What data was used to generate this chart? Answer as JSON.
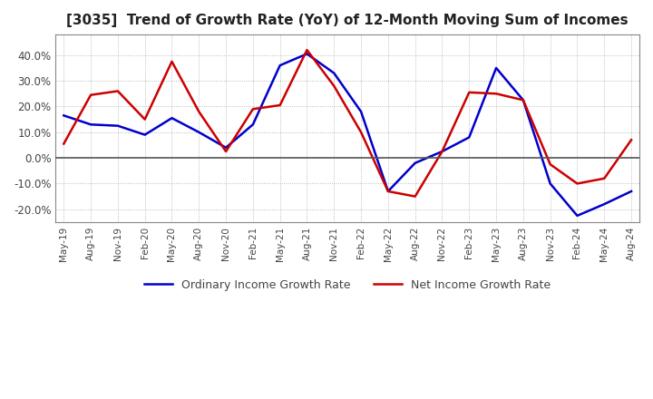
{
  "title": "[3035]  Trend of Growth Rate (YoY) of 12-Month Moving Sum of Incomes",
  "title_fontsize": 11,
  "ylim": [
    -25,
    48
  ],
  "yticks": [
    -20.0,
    -10.0,
    0.0,
    10.0,
    20.0,
    30.0,
    40.0
  ],
  "background_color": "#ffffff",
  "plot_bg_color": "#ffffff",
  "grid_color": "#aaaaaa",
  "ordinary_color": "#0000cc",
  "net_color": "#cc0000",
  "legend_labels": [
    "Ordinary Income Growth Rate",
    "Net Income Growth Rate"
  ],
  "x_labels": [
    "May-19",
    "Aug-19",
    "Nov-19",
    "Feb-20",
    "May-20",
    "Aug-20",
    "Nov-20",
    "Feb-21",
    "May-21",
    "Aug-21",
    "Nov-21",
    "Feb-22",
    "May-22",
    "Aug-22",
    "Nov-22",
    "Feb-23",
    "May-23",
    "Aug-23",
    "Nov-23",
    "Feb-24",
    "May-24",
    "Aug-24"
  ],
  "ordinary_income": [
    16.5,
    13.0,
    12.5,
    9.0,
    15.5,
    10.0,
    4.0,
    13.0,
    36.0,
    40.5,
    33.0,
    18.0,
    -13.0,
    -2.0,
    2.5,
    8.0,
    35.0,
    22.5,
    -10.0,
    -22.5,
    -18.0,
    -13.0
  ],
  "net_income": [
    5.5,
    24.5,
    26.0,
    15.0,
    37.5,
    18.0,
    2.5,
    19.0,
    20.5,
    42.0,
    28.0,
    10.0,
    -13.0,
    -15.0,
    2.5,
    25.5,
    25.0,
    22.5,
    -2.5,
    -10.0,
    -8.0,
    7.0
  ]
}
